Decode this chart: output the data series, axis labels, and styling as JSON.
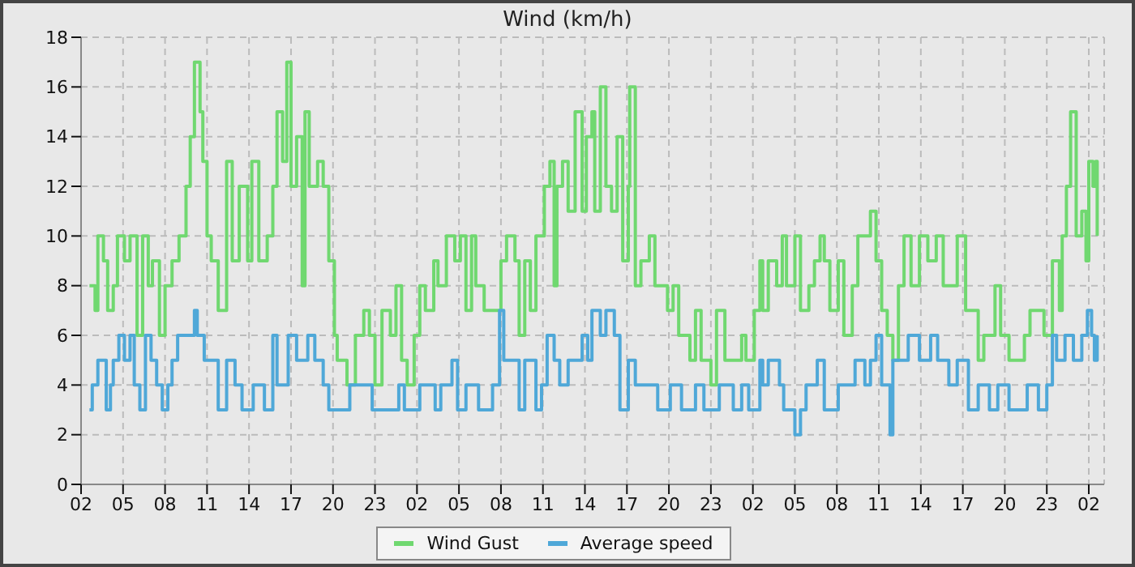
{
  "chart_data": {
    "type": "step",
    "title": "Wind (km/h)",
    "xlim": [
      "--01-01T02:00",
      "--01-04T03:06"
    ],
    "xticks": [
      {
        "value": "--01-01T02:00",
        "label": "02"
      },
      {
        "value": "--01-01T05:00",
        "label": "05"
      },
      {
        "value": "--01-01T08:00",
        "label": "08"
      },
      {
        "value": "--01-01T11:00",
        "label": "11"
      },
      {
        "value": "--01-01T14:00",
        "label": "14"
      },
      {
        "value": "--01-01T17:00",
        "label": "17"
      },
      {
        "value": "--01-01T20:00",
        "label": "20"
      },
      {
        "value": "--01-01T23:00",
        "label": "23"
      },
      {
        "value": "--01-02T02:00",
        "label": "02"
      },
      {
        "value": "--01-02T05:00",
        "label": "05"
      },
      {
        "value": "--01-02T08:00",
        "label": "08"
      },
      {
        "value": "--01-02T11:00",
        "label": "11"
      },
      {
        "value": "--01-02T14:00",
        "label": "14"
      },
      {
        "value": "--01-02T17:00",
        "label": "17"
      },
      {
        "value": "--01-02T20:00",
        "label": "20"
      },
      {
        "value": "--01-02T23:00",
        "label": "23"
      },
      {
        "value": "--01-03T02:00",
        "label": "02"
      },
      {
        "value": "--01-03T05:00",
        "label": "05"
      },
      {
        "value": "--01-03T08:00",
        "label": "08"
      },
      {
        "value": "--01-03T11:00",
        "label": "11"
      },
      {
        "value": "--01-03T14:00",
        "label": "14"
      },
      {
        "value": "--01-03T17:00",
        "label": "17"
      },
      {
        "value": "--01-03T20:00",
        "label": "20"
      },
      {
        "value": "--01-03T23:00",
        "label": "23"
      },
      {
        "value": "--01-04T02:00",
        "label": "02"
      }
    ],
    "ylim": [
      0,
      18
    ],
    "yticks": [
      0,
      2,
      4,
      6,
      8,
      10,
      12,
      14,
      16,
      18
    ],
    "grid": true,
    "legend": "bottom",
    "series": [
      {
        "name": "Wind Gust",
        "color": "#70d870",
        "x": [
          "--01-01T02:36",
          "--01-01T03:00",
          "--01-01T03:12",
          "--01-01T03:36",
          "--01-01T03:54",
          "--01-01T04:18",
          "--01-01T04:36",
          "--01-01T05:06",
          "--01-01T05:30",
          "--01-01T06:00",
          "--01-01T06:24",
          "--01-01T06:48",
          "--01-01T07:06",
          "--01-01T07:36",
          "--01-01T08:00",
          "--01-01T08:30",
          "--01-01T09:00",
          "--01-01T09:30",
          "--01-01T09:48",
          "--01-01T10:06",
          "--01-01T10:30",
          "--01-01T10:42",
          "--01-01T11:00",
          "--01-01T11:18",
          "--01-01T11:48",
          "--01-01T12:24",
          "--01-01T12:48",
          "--01-01T13:18",
          "--01-01T13:54",
          "--01-01T14:12",
          "--01-01T14:42",
          "--01-01T15:18",
          "--01-01T15:42",
          "--01-01T16:00",
          "--01-01T16:24",
          "--01-01T16:42",
          "--01-01T17:00",
          "--01-01T17:24",
          "--01-01T17:48",
          "--01-01T18:00",
          "--01-01T18:18",
          "--01-01T18:54",
          "--01-01T19:18",
          "--01-01T19:42",
          "--01-01T20:06",
          "--01-01T20:18",
          "--01-01T20:48",
          "--01-01T21:00",
          "--01-01T21:36",
          "--01-01T22:12",
          "--01-01T22:36",
          "--01-01T23:00",
          "--01-01T23:30",
          "--01-02T00:06",
          "--01-02T00:30",
          "--01-02T00:54",
          "--01-02T01:18",
          "--01-02T01:48",
          "--01-02T02:12",
          "--01-02T02:36",
          "--01-02T03:12",
          "--01-02T03:30",
          "--01-02T04:06",
          "--01-02T04:42",
          "--01-02T05:06",
          "--01-02T05:30",
          "--01-02T05:54",
          "--01-02T06:12",
          "--01-02T06:48",
          "--01-02T08:00",
          "--01-02T08:24",
          "--01-02T09:00",
          "--01-02T09:18",
          "--01-02T09:42",
          "--01-02T10:06",
          "--01-02T10:30",
          "--01-02T11:06",
          "--01-02T11:30",
          "--01-02T11:48",
          "--01-02T12:00",
          "--01-02T12:24",
          "--01-02T12:48",
          "--01-02T13:18",
          "--01-02T13:48",
          "--01-02T14:06",
          "--01-02T14:30",
          "--01-02T14:42",
          "--01-02T15:06",
          "--01-02T15:30",
          "--01-02T15:54",
          "--01-02T16:18",
          "--01-02T16:42",
          "--01-02T17:06",
          "--01-02T17:12",
          "--01-02T17:36",
          "--01-02T18:00",
          "--01-02T18:36",
          "--01-02T19:00",
          "--01-02T19:54",
          "--01-02T20:18",
          "--01-02T20:42",
          "--01-02T21:30",
          "--01-02T21:54",
          "--01-02T22:18",
          "--01-02T23:00",
          "--01-02T23:24",
          "--01-03T00:00",
          "--01-03T01:12",
          "--01-03T01:30",
          "--01-03T02:06",
          "--01-03T02:30",
          "--01-03T02:42",
          "--01-03T03:06",
          "--01-03T03:42",
          "--01-03T04:06",
          "--01-03T04:24",
          "--01-03T05:00",
          "--01-03T05:24",
          "--01-03T06:00",
          "--01-03T06:24",
          "--01-03T06:48",
          "--01-03T07:06",
          "--01-03T07:30",
          "--01-03T08:06",
          "--01-03T08:30",
          "--01-03T09:06",
          "--01-03T09:30",
          "--01-03T10:24",
          "--01-03T10:48",
          "--01-03T11:12",
          "--01-03T11:36",
          "--01-03T12:00",
          "--01-03T12:24",
          "--01-03T12:48",
          "--01-03T13:18",
          "--01-03T13:54",
          "--01-03T14:30",
          "--01-03T15:06",
          "--01-03T15:36",
          "--01-03T16:36",
          "--01-03T17:12",
          "--01-03T18:06",
          "--01-03T18:30",
          "--01-03T19:18",
          "--01-03T19:42",
          "--01-03T20:18",
          "--01-03T21:24",
          "--01-03T21:48",
          "--01-03T22:48",
          "--01-03T23:24",
          "--01-03T23:54",
          "--01-04T00:06",
          "--01-04T00:24",
          "--01-04T00:42",
          "--01-04T01:06",
          "--01-04T01:30",
          "--01-04T01:48",
          "--01-04T02:00",
          "--01-04T02:18",
          "--01-04T02:30",
          "--01-04T02:36"
        ],
        "values": [
          8,
          7,
          10,
          9,
          7,
          8,
          10,
          9,
          10,
          6,
          10,
          8,
          9,
          6,
          8,
          9,
          10,
          12,
          14,
          17,
          15,
          13,
          10,
          9,
          7,
          13,
          9,
          12,
          9,
          13,
          9,
          10,
          12,
          15,
          13,
          17,
          12,
          14,
          8,
          15,
          12,
          13,
          12,
          9,
          6,
          5,
          5,
          4,
          6,
          7,
          6,
          4,
          7,
          6,
          8,
          5,
          4,
          6,
          8,
          7,
          9,
          8,
          10,
          9,
          10,
          7,
          10,
          8,
          7,
          9,
          10,
          9,
          6,
          9,
          7,
          10,
          12,
          13,
          8,
          12,
          13,
          11,
          15,
          11,
          14,
          15,
          11,
          16,
          12,
          11,
          14,
          9,
          12,
          16,
          8,
          9,
          10,
          8,
          7,
          8,
          6,
          5,
          7,
          5,
          4,
          7,
          5,
          6,
          5,
          7,
          9,
          7,
          9,
          8,
          10,
          8,
          10,
          7,
          8,
          9,
          10,
          9,
          7,
          9,
          6,
          8,
          10,
          11,
          9,
          7,
          6,
          5,
          8,
          10,
          8,
          10,
          9,
          10,
          8,
          10,
          7,
          5,
          6,
          8,
          6,
          5,
          6,
          7,
          6,
          9,
          7,
          10,
          12,
          15,
          10,
          11,
          9,
          13,
          12,
          13,
          10
        ]
      },
      {
        "name": "Average speed",
        "color": "#4fa8d8",
        "x": [
          "--01-01T02:36",
          "--01-01T02:48",
          "--01-01T03:12",
          "--01-01T03:48",
          "--01-01T04:06",
          "--01-01T04:18",
          "--01-01T04:42",
          "--01-01T05:06",
          "--01-01T05:30",
          "--01-01T05:48",
          "--01-01T06:12",
          "--01-01T06:36",
          "--01-01T07:00",
          "--01-01T07:24",
          "--01-01T07:48",
          "--01-01T08:12",
          "--01-01T08:30",
          "--01-01T08:54",
          "--01-01T09:30",
          "--01-01T10:06",
          "--01-01T10:18",
          "--01-01T10:48",
          "--01-01T11:12",
          "--01-01T11:48",
          "--01-01T12:24",
          "--01-01T13:00",
          "--01-01T13:30",
          "--01-01T14:18",
          "--01-01T15:06",
          "--01-01T15:42",
          "--01-01T16:00",
          "--01-01T16:48",
          "--01-01T17:24",
          "--01-01T18:12",
          "--01-01T18:42",
          "--01-01T19:18",
          "--01-01T19:42",
          "--01-01T20:30",
          "--01-01T21:12",
          "--01-01T22:48",
          "--01-01T23:54",
          "--01-02T00:42",
          "--01-02T01:06",
          "--01-02T01:48",
          "--01-02T02:12",
          "--01-02T03:18",
          "--01-02T03:42",
          "--01-02T04:30",
          "--01-02T04:54",
          "--01-02T05:30",
          "--01-02T06:24",
          "--01-02T07:24",
          "--01-02T07:54",
          "--01-02T08:12",
          "--01-02T08:48",
          "--01-02T09:18",
          "--01-02T09:42",
          "--01-02T10:30",
          "--01-02T10:54",
          "--01-02T11:18",
          "--01-02T11:48",
          "--01-02T12:12",
          "--01-02T12:48",
          "--01-02T13:48",
          "--01-02T14:12",
          "--01-02T14:30",
          "--01-02T15:06",
          "--01-02T15:30",
          "--01-02T16:06",
          "--01-02T16:30",
          "--01-02T17:06",
          "--01-02T17:36",
          "--01-02T19:12",
          "--01-02T20:06",
          "--01-02T20:54",
          "--01-02T21:54",
          "--01-02T22:30",
          "--01-02T23:36",
          "--01-03T00:36",
          "--01-03T01:12",
          "--01-03T01:42",
          "--01-03T02:30",
          "--01-03T02:42",
          "--01-03T03:06",
          "--01-03T03:54",
          "--01-03T04:12",
          "--01-03T05:00",
          "--01-03T05:24",
          "--01-03T05:48",
          "--01-03T06:36",
          "--01-03T07:06",
          "--01-03T08:06",
          "--01-03T09:18",
          "--01-03T10:00",
          "--01-03T10:24",
          "--01-03T10:48",
          "--01-03T11:12",
          "--01-03T11:48",
          "--01-03T12:00",
          "--01-03T12:42",
          "--01-03T13:06",
          "--01-03T13:54",
          "--01-03T14:42",
          "--01-03T15:12",
          "--01-03T16:00",
          "--01-03T16:36",
          "--01-03T17:24",
          "--01-03T18:06",
          "--01-03T18:54",
          "--01-03T19:30",
          "--01-03T20:18",
          "--01-03T21:36",
          "--01-03T22:24",
          "--01-03T23:00",
          "--01-03T23:24",
          "--01-03T23:42",
          "--01-04T00:18",
          "--01-04T00:54",
          "--01-04T01:30",
          "--01-04T01:54",
          "--01-04T02:12",
          "--01-04T02:24",
          "--01-04T02:36"
        ],
        "values": [
          3,
          4,
          5,
          3,
          4,
          5,
          6,
          5,
          6,
          4,
          3,
          6,
          5,
          4,
          3,
          4,
          5,
          6,
          6,
          7,
          6,
          5,
          5,
          3,
          5,
          4,
          3,
          4,
          3,
          6,
          4,
          6,
          5,
          6,
          5,
          4,
          3,
          3,
          4,
          3,
          3,
          4,
          3,
          3,
          4,
          3,
          4,
          5,
          3,
          4,
          3,
          4,
          7,
          5,
          5,
          3,
          5,
          3,
          4,
          6,
          5,
          4,
          5,
          6,
          5,
          7,
          6,
          7,
          6,
          3,
          5,
          4,
          3,
          4,
          3,
          4,
          3,
          4,
          3,
          4,
          3,
          5,
          4,
          5,
          4,
          3,
          2,
          3,
          4,
          5,
          3,
          4,
          5,
          4,
          5,
          6,
          4,
          2,
          5,
          5,
          6,
          5,
          6,
          5,
          4,
          5,
          3,
          4,
          3,
          4,
          3,
          4,
          3,
          4,
          6,
          5,
          6,
          5,
          6,
          7,
          6,
          5,
          6
        ]
      }
    ]
  }
}
